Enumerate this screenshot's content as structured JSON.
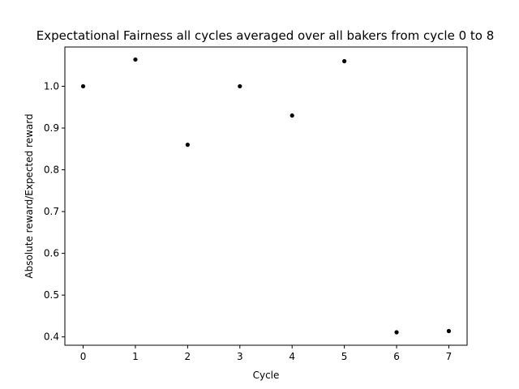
{
  "chart_data": {
    "type": "scatter",
    "title": "Expectational Fairness all cycles averaged over all bakers from cycle 0 to 8",
    "xlabel": "Cycle",
    "ylabel": "Absolute reward/Expected reward",
    "x": [
      0,
      1,
      2,
      3,
      4,
      5,
      6,
      7
    ],
    "y": [
      1.0,
      1.064,
      0.86,
      1.0,
      0.93,
      1.06,
      0.411,
      0.414
    ],
    "xlim": [
      -0.35,
      7.35
    ],
    "ylim": [
      0.38,
      1.094
    ],
    "xticks": [
      0,
      1,
      2,
      3,
      4,
      5,
      6,
      7
    ],
    "yticks": [
      0.4,
      0.5,
      0.6,
      0.7,
      0.8,
      0.9,
      1.0
    ],
    "ytick_labels": [
      "0.4",
      "0.5",
      "0.6",
      "0.7",
      "0.8",
      "0.9",
      "1.0"
    ],
    "grid": false,
    "marker_color": "#000000"
  }
}
